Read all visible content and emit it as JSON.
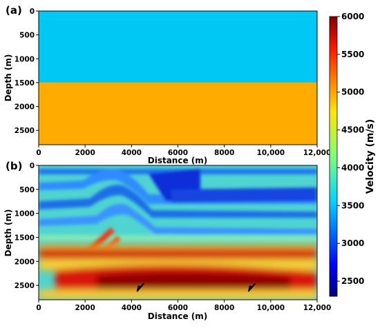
{
  "chart_data": [
    {
      "panel_label": "(a)",
      "type": "heatmap",
      "xlabel": "Distance (m)",
      "ylabel": "Depth (m)",
      "xlim": [
        0,
        12000
      ],
      "ylim": [
        2800,
        0
      ],
      "x_ticks": [
        "0",
        "2000",
        "4000",
        "6000",
        "8000",
        "10,000",
        "12,000"
      ],
      "x_tick_values": [
        0,
        2000,
        4000,
        6000,
        8000,
        10000,
        12000
      ],
      "y_ticks": [
        "0",
        "500",
        "1000",
        "1500",
        "2000",
        "2500"
      ],
      "y_tick_values": [
        0,
        500,
        1000,
        1500,
        2000,
        2500
      ],
      "layers": [
        {
          "depth_top": 0,
          "depth_bottom": 1500,
          "velocity": 3500,
          "color": "#00c8f5"
        },
        {
          "depth_top": 1500,
          "depth_bottom": 2800,
          "velocity": 5000,
          "color": "#ffab00"
        }
      ]
    },
    {
      "panel_label": "(b)",
      "type": "heatmap",
      "xlabel": "Distance (m)",
      "ylabel": "Depth (m)",
      "xlim": [
        0,
        12000
      ],
      "ylim": [
        2800,
        0
      ],
      "x_ticks": [
        "0",
        "2000",
        "4000",
        "6000",
        "8000",
        "10,000",
        "12,000"
      ],
      "x_tick_values": [
        0,
        2000,
        4000,
        6000,
        8000,
        10000,
        12000
      ],
      "y_ticks": [
        "0",
        "500",
        "1000",
        "1500",
        "2000",
        "2500"
      ],
      "y_tick_values": [
        0,
        500,
        1000,
        1500,
        2000,
        2500
      ],
      "background_velocity": 3800,
      "features": [
        {
          "kind": "upper-layered-band",
          "velocity_range": [
            3200,
            4500
          ],
          "depth_range": [
            0,
            1500
          ]
        },
        {
          "kind": "high-velocity-layer",
          "depth": 1850,
          "velocity": 5700
        },
        {
          "kind": "high-velocity-zone",
          "depth_range": [
            2100,
            2600
          ],
          "velocity": 5900
        }
      ],
      "arrows": [
        {
          "x": 4300,
          "y": 2600
        },
        {
          "x": 9100,
          "y": 2600
        }
      ]
    }
  ],
  "colorbar": {
    "label": "Velocity (m/s)",
    "range": [
      2300,
      6000
    ],
    "ticks": [
      "2500",
      "3000",
      "3500",
      "4000",
      "4500",
      "5000",
      "5500",
      "6000"
    ],
    "tick_values": [
      2500,
      3000,
      3500,
      4000,
      4500,
      5000,
      5500,
      6000
    ],
    "colormap": "jet"
  }
}
